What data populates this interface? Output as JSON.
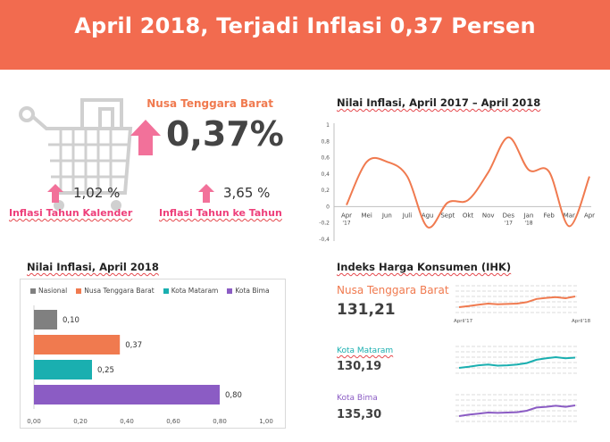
{
  "header": {
    "title": "April 2018, Terjadi Inflasi 0,37 Persen"
  },
  "headline": {
    "region": "Nusa Tenggara Barat",
    "value": "0,37%",
    "calendar": {
      "value": "1,02 %",
      "label": "Inflasi Tahun Kalender"
    },
    "yoy": {
      "value": "3,65 %",
      "label": "Inflasi Tahun ke Tahun"
    }
  },
  "colors": {
    "banner": "#f26b4f",
    "ntb": "#f07a4f",
    "nasional": "#808080",
    "mataram": "#1aafb0",
    "bima": "#8b5cc4",
    "arrow": "#f2719a",
    "label_pink": "#ee3f7a"
  },
  "chart_data": [
    {
      "type": "line",
      "title": "Nilai Inflasi, April 2017 – April 2018",
      "categories": [
        "Apr '17",
        "Mei",
        "Jun",
        "Juli",
        "Agu",
        "Sept",
        "Okt",
        "Nov",
        "Des '17",
        "Jan '18",
        "Feb",
        "Mar",
        "Apr"
      ],
      "category_lines": [
        [
          "Apr",
          "'17"
        ],
        [
          "Mei",
          ""
        ],
        [
          "Jun",
          ""
        ],
        [
          "Juli",
          ""
        ],
        [
          "Agu",
          ""
        ],
        [
          "Sept",
          ""
        ],
        [
          "Okt",
          ""
        ],
        [
          "Nov",
          ""
        ],
        [
          "Des",
          "'17"
        ],
        [
          "Jan",
          "'18"
        ],
        [
          "Feb",
          ""
        ],
        [
          "Mar",
          ""
        ],
        [
          "Apr",
          ""
        ]
      ],
      "values": [
        0.02,
        0.55,
        0.55,
        0.37,
        -0.25,
        0.05,
        0.08,
        0.42,
        0.85,
        0.45,
        0.43,
        -0.24,
        0.37
      ],
      "yticks": [
        "1",
        "0,8",
        "0,6",
        "0,4",
        "0,2",
        "0",
        "-0,2",
        "-0,4"
      ],
      "ytick_values": [
        1,
        0.8,
        0.6,
        0.4,
        0.2,
        0,
        -0.2,
        -0.4
      ],
      "ylim": [
        -0.4,
        1
      ]
    },
    {
      "type": "bar",
      "orientation": "horizontal",
      "title": "Nilai Inflasi, April 2018",
      "legend": [
        "Nasional",
        "Nusa Tenggara Barat",
        "Kota Mataram",
        "Kota Bima"
      ],
      "categories": [
        "Nasional",
        "Nusa Tenggara Barat",
        "Kota Mataram",
        "Kota Bima"
      ],
      "values": [
        0.1,
        0.37,
        0.25,
        0.8
      ],
      "value_labels": [
        "0,10",
        "0,37",
        "0,25",
        "0,80"
      ],
      "xticks": [
        "0,00",
        "0,20",
        "0,40",
        "0,60",
        "0,80",
        "1,00"
      ],
      "xlim": [
        0,
        1
      ]
    }
  ],
  "ihk": {
    "title": "Indeks Harga Konsumen (IHK)",
    "start_label": "April'17",
    "end_label": "April'18",
    "items": [
      {
        "name": "Nusa Tenggara Barat",
        "value": "131,21",
        "series": [
          128.2,
          128.5,
          128.9,
          129.2,
          129.0,
          129.1,
          129.2,
          129.6,
          130.5,
          130.8,
          131.0,
          130.7,
          131.21
        ]
      },
      {
        "name": "Kota Mataram",
        "value": "130,19",
        "series": [
          127.4,
          127.7,
          128.1,
          128.3,
          128.0,
          128.1,
          128.3,
          128.7,
          129.6,
          130.0,
          130.3,
          130.0,
          130.19
        ]
      },
      {
        "name": "Kota Bima",
        "value": "135,30",
        "series": [
          132.3,
          132.7,
          133.0,
          133.3,
          133.2,
          133.3,
          133.4,
          133.8,
          134.7,
          134.9,
          135.2,
          134.9,
          135.3
        ]
      }
    ]
  }
}
